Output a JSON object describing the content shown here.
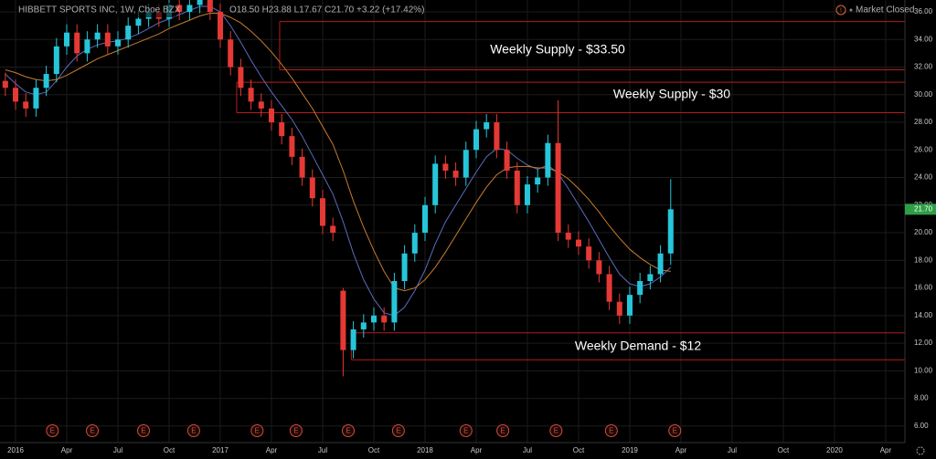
{
  "chart_data": {
    "type": "candlestick",
    "title": "HIBBETT SPORTS INC, 1W, Cboe BZX",
    "ohlc_legend": "O18.50 H23.88 L17.67 C21.70 +3.22 (+17.42%)",
    "status": "Market Closed",
    "up_color": "#26c6da",
    "down_color": "#e53935",
    "grid": true,
    "xlim": [
      2015.924,
      2020.344
    ],
    "ylim": [
      4.8,
      36.86
    ],
    "xticks": [
      {
        "value": 2016.0,
        "label": "2016"
      },
      {
        "value": 2016.25,
        "label": "Apr"
      },
      {
        "value": 2016.5,
        "label": "Jul"
      },
      {
        "value": 2016.75,
        "label": "Oct"
      },
      {
        "value": 2017.0,
        "label": "2017"
      },
      {
        "value": 2017.25,
        "label": "Apr"
      },
      {
        "value": 2017.5,
        "label": "Jul"
      },
      {
        "value": 2017.75,
        "label": "Oct"
      },
      {
        "value": 2018.0,
        "label": "2018"
      },
      {
        "value": 2018.25,
        "label": "Apr"
      },
      {
        "value": 2018.5,
        "label": "Jul"
      },
      {
        "value": 2018.75,
        "label": "Oct"
      },
      {
        "value": 2019.0,
        "label": "2019"
      },
      {
        "value": 2019.25,
        "label": "Apr"
      },
      {
        "value": 2019.5,
        "label": "Jul"
      },
      {
        "value": 2019.75,
        "label": "Oct"
      },
      {
        "value": 2020.0,
        "label": "2020"
      },
      {
        "value": 2020.25,
        "label": "Apr"
      }
    ],
    "yticks": [
      {
        "value": 6,
        "label": "6.00"
      },
      {
        "value": 8,
        "label": "8.00"
      },
      {
        "value": 10,
        "label": "10.00"
      },
      {
        "value": 12,
        "label": "12.00"
      },
      {
        "value": 14,
        "label": "14.00"
      },
      {
        "value": 16,
        "label": "16.00"
      },
      {
        "value": 18,
        "label": "18.00"
      },
      {
        "value": 20,
        "label": "20.00"
      },
      {
        "value": 22,
        "label": "22.00"
      },
      {
        "value": 24,
        "label": "24.00"
      },
      {
        "value": 26,
        "label": "26.00"
      },
      {
        "value": 28,
        "label": "28.00"
      },
      {
        "value": 30,
        "label": "30.00"
      },
      {
        "value": 32,
        "label": "32.00"
      },
      {
        "value": 34,
        "label": "34.00"
      },
      {
        "value": 36,
        "label": "36.00"
      }
    ],
    "candles": {
      "x": [
        2015.95,
        2016.0,
        2016.05,
        2016.1,
        2016.15,
        2016.2,
        2016.25,
        2016.3,
        2016.35,
        2016.4,
        2016.45,
        2016.5,
        2016.55,
        2016.6,
        2016.65,
        2016.7,
        2016.75,
        2016.8,
        2016.85,
        2016.9,
        2016.95,
        2017.0,
        2017.05,
        2017.1,
        2017.15,
        2017.2,
        2017.25,
        2017.3,
        2017.35,
        2017.4,
        2017.45,
        2017.5,
        2017.55,
        2017.6,
        2017.65,
        2017.7,
        2017.75,
        2017.8,
        2017.85,
        2017.9,
        2017.95,
        2018.0,
        2018.05,
        2018.1,
        2018.15,
        2018.2,
        2018.25,
        2018.3,
        2018.35,
        2018.4,
        2018.45,
        2018.5,
        2018.55,
        2018.6,
        2018.65,
        2018.7,
        2018.75,
        2018.8,
        2018.85,
        2018.9,
        2018.95,
        2019.0,
        2019.05,
        2019.1,
        2019.15,
        2019.2
      ],
      "open": [
        31.0,
        30.5,
        29.5,
        29.0,
        30.5,
        31.5,
        33.5,
        34.5,
        33.0,
        34.0,
        34.5,
        33.5,
        34.0,
        35.0,
        35.5,
        36.0,
        35.5,
        36.5,
        36.0,
        36.5,
        37.0,
        36.0,
        34.0,
        32.0,
        30.5,
        29.5,
        29.0,
        28.0,
        27.0,
        25.5,
        24.0,
        22.5,
        20.5,
        15.8,
        11.5,
        13.0,
        13.5,
        14.0,
        13.5,
        16.5,
        18.5,
        20.0,
        22.0,
        25.0,
        24.5,
        24.0,
        26.0,
        27.5,
        28.0,
        26.0,
        24.5,
        22.0,
        23.5,
        24.0,
        26.5,
        20.0,
        19.5,
        19.0,
        18.0,
        17.0,
        15.0,
        14.0,
        15.5,
        16.5,
        17.0,
        18.5
      ],
      "high": [
        31.6,
        31.1,
        30.1,
        31.1,
        32.1,
        34.1,
        35.1,
        35.1,
        34.6,
        35.1,
        35.1,
        34.6,
        35.6,
        36.1,
        36.6,
        36.6,
        37.1,
        37.1,
        37.1,
        37.6,
        37.6,
        36.6,
        34.6,
        32.6,
        31.1,
        30.1,
        29.6,
        28.6,
        27.6,
        26.1,
        24.6,
        23.1,
        21.1,
        16.0,
        13.6,
        14.1,
        14.6,
        14.6,
        17.1,
        19.1,
        20.6,
        22.6,
        25.6,
        25.6,
        25.1,
        26.6,
        28.1,
        28.6,
        28.6,
        26.6,
        25.1,
        24.1,
        24.6,
        27.1,
        29.6,
        20.6,
        20.1,
        19.6,
        18.6,
        17.6,
        15.6,
        16.1,
        17.1,
        17.6,
        19.1,
        23.88
      ],
      "low": [
        29.9,
        28.9,
        28.4,
        28.4,
        29.9,
        30.9,
        32.9,
        32.4,
        32.4,
        33.4,
        32.9,
        32.9,
        33.4,
        34.4,
        34.9,
        34.9,
        34.9,
        35.4,
        35.4,
        35.9,
        35.4,
        33.4,
        31.4,
        29.9,
        28.9,
        28.4,
        27.4,
        26.4,
        24.9,
        23.4,
        21.9,
        19.9,
        19.4,
        9.6,
        10.9,
        12.4,
        12.9,
        12.9,
        12.9,
        15.9,
        17.9,
        19.4,
        21.4,
        23.9,
        23.4,
        23.4,
        25.4,
        26.9,
        25.4,
        23.9,
        21.4,
        21.4,
        22.9,
        23.4,
        19.4,
        18.9,
        18.4,
        17.4,
        16.4,
        14.4,
        13.4,
        13.4,
        14.9,
        15.9,
        16.4,
        17.67
      ],
      "close": [
        30.5,
        29.5,
        29.0,
        30.5,
        31.5,
        33.5,
        34.5,
        33.0,
        34.0,
        34.5,
        33.5,
        34.0,
        35.0,
        35.5,
        36.0,
        35.5,
        36.5,
        36.0,
        36.5,
        37.0,
        36.0,
        34.0,
        32.0,
        30.5,
        29.5,
        29.0,
        28.0,
        27.0,
        25.5,
        24.0,
        22.5,
        20.5,
        20.0,
        11.5,
        13.0,
        13.5,
        14.0,
        13.5,
        16.5,
        18.5,
        20.0,
        22.0,
        25.0,
        24.5,
        24.0,
        26.0,
        27.5,
        28.0,
        26.0,
        24.5,
        22.0,
        23.5,
        24.0,
        26.5,
        20.0,
        19.5,
        19.0,
        18.0,
        17.0,
        15.0,
        14.0,
        15.5,
        16.5,
        17.0,
        18.5,
        21.7
      ]
    },
    "moving_averages": [
      {
        "color": "#5c6bc0",
        "values": [
          31.5,
          30.8,
          30.2,
          30.0,
          30.2,
          31.0,
          32.0,
          32.8,
          33.3,
          33.6,
          33.8,
          33.9,
          34.1,
          34.4,
          34.8,
          35.2,
          35.5,
          35.8,
          36.1,
          36.4,
          36.4,
          36.0,
          35.0,
          33.8,
          32.5,
          31.3,
          30.2,
          29.2,
          28.2,
          27.0,
          25.6,
          24.2,
          22.8,
          20.8,
          18.5,
          16.6,
          15.2,
          14.2,
          14.0,
          14.6,
          15.8,
          17.3,
          19.2,
          20.8,
          22.0,
          23.2,
          24.4,
          25.5,
          26.1,
          26.0,
          25.4,
          24.9,
          24.6,
          24.9,
          24.3,
          23.2,
          22.0,
          20.8,
          19.5,
          18.2,
          17.0,
          16.3,
          16.1,
          16.3,
          16.8,
          17.5
        ]
      },
      {
        "color": "#c77b30",
        "values": [
          31.8,
          31.6,
          31.3,
          31.1,
          31.0,
          31.1,
          31.4,
          31.8,
          32.2,
          32.6,
          32.9,
          33.2,
          33.5,
          33.8,
          34.1,
          34.4,
          34.8,
          35.1,
          35.4,
          35.7,
          35.9,
          35.9,
          35.6,
          35.2,
          34.6,
          33.9,
          33.1,
          32.2,
          31.2,
          30.1,
          29.0,
          27.7,
          26.4,
          24.5,
          22.3,
          20.4,
          18.7,
          17.2,
          16.0,
          15.8,
          16.0,
          16.6,
          17.5,
          18.6,
          19.8,
          21.0,
          22.2,
          23.3,
          24.2,
          24.7,
          24.8,
          24.8,
          24.7,
          24.7,
          24.4,
          23.9,
          23.2,
          22.4,
          21.5,
          20.5,
          19.6,
          18.8,
          18.2,
          17.7,
          17.3,
          17.2
        ]
      }
    ],
    "zones": [
      {
        "label": "Weekly Supply - $33.50",
        "top": 35.3,
        "bottom": 31.8,
        "start": 2017.29,
        "color": "#b71c1c"
      },
      {
        "label": "Weekly Supply - $30",
        "top": 30.9,
        "bottom": 28.7,
        "start": 2017.08,
        "color": "#b71c1c"
      },
      {
        "label": "Weekly Demand - $12",
        "top": 12.75,
        "bottom": 10.8,
        "start": 2017.64,
        "color": "#b71c1c"
      }
    ],
    "last_price": {
      "value": 21.7,
      "label": "21.70",
      "color": "#2e9e46"
    },
    "earnings": {
      "label": "E",
      "color": "#d84a3a",
      "x": [
        2016.18,
        2016.375,
        2016.625,
        2016.87,
        2017.18,
        2017.37,
        2017.625,
        2017.87,
        2018.2,
        2018.38,
        2018.64,
        2018.91,
        2019.22
      ]
    }
  }
}
